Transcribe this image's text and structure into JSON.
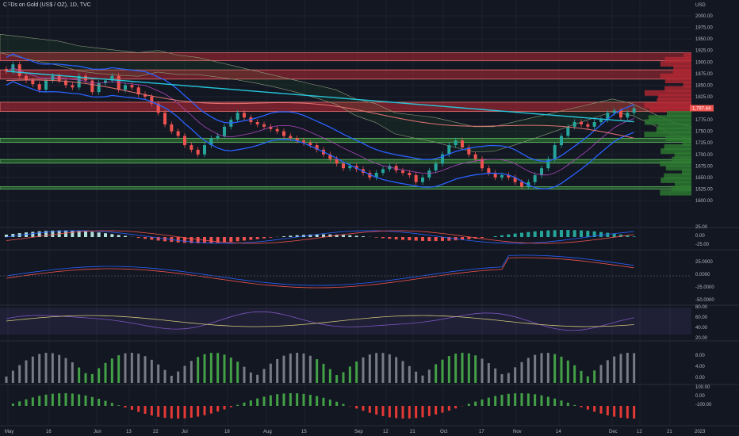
{
  "header": {
    "symbol_title": "CFDs on Gold (US$ / OZ), 1D, TVC"
  },
  "price_axis": {
    "currency": "USD",
    "labels": [
      "2000.00",
      "1975.00",
      "1950.00",
      "1925.00",
      "1900.00",
      "1875.00",
      "1850.00",
      "1825.00",
      "1800.00",
      "1775.00",
      "1750.00",
      "1725.00",
      "1700.00",
      "1675.00",
      "1650.00",
      "1625.00",
      "1600.00"
    ],
    "current_price_tag": "1,797.44"
  },
  "indicator_axes": {
    "macd": [
      "25.00",
      "0.00",
      "-25.00"
    ],
    "macd2": [
      "25.0000",
      "0.0000",
      "-25.0000",
      "-50.0000"
    ],
    "rsi": [
      "80.00",
      "60.00",
      "40.00",
      "20.00"
    ],
    "volume": [
      "8.00",
      "4.00",
      "0.00"
    ],
    "osc": [
      "100.00",
      "0.00",
      "-100.00"
    ]
  },
  "date_axis": {
    "labels": [
      "May",
      "16",
      "Jun",
      "13",
      "22",
      "Jul",
      "18",
      "Aug",
      "15",
      "Sep",
      "12",
      "21",
      "Oct",
      "17",
      "Nov",
      "14",
      "Dec",
      "12",
      "21",
      "2023"
    ]
  },
  "colors": {
    "background": "#131722",
    "up": "#26a69a",
    "down": "#ef5350",
    "bollinger": "#2962ff",
    "ma200": "#26c6da",
    "red_zone": "#b22833",
    "green_zone": "#2e7d32"
  }
}
